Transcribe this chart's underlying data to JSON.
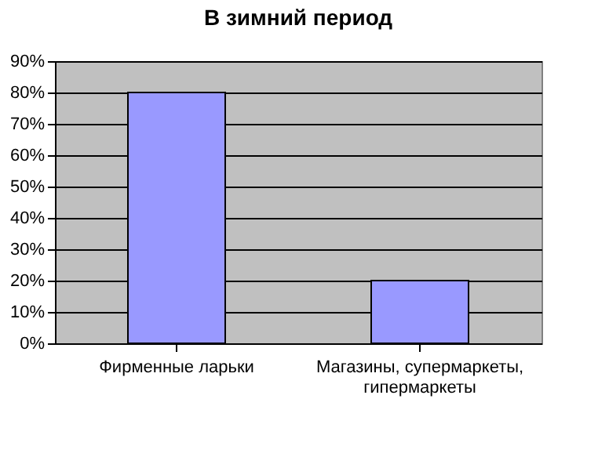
{
  "chart_data": {
    "type": "bar",
    "title": "В зимний период",
    "categories": [
      "Фирменные ларьки",
      "Магазины, супермаркеты, гипермаркеты"
    ],
    "values": [
      80,
      20
    ],
    "color": "#9999ff",
    "ylim": [
      0,
      90
    ],
    "yticks": [
      {
        "value": 0,
        "label": "0%"
      },
      {
        "value": 10,
        "label": "10%"
      },
      {
        "value": 20,
        "label": "20%"
      },
      {
        "value": 30,
        "label": "30%"
      },
      {
        "value": 40,
        "label": "40%"
      },
      {
        "value": 50,
        "label": "50%"
      },
      {
        "value": 60,
        "label": "60%"
      },
      {
        "value": 70,
        "label": "70%"
      },
      {
        "value": 80,
        "label": "80%"
      },
      {
        "value": 90,
        "label": "90%"
      }
    ],
    "grid": "y"
  }
}
